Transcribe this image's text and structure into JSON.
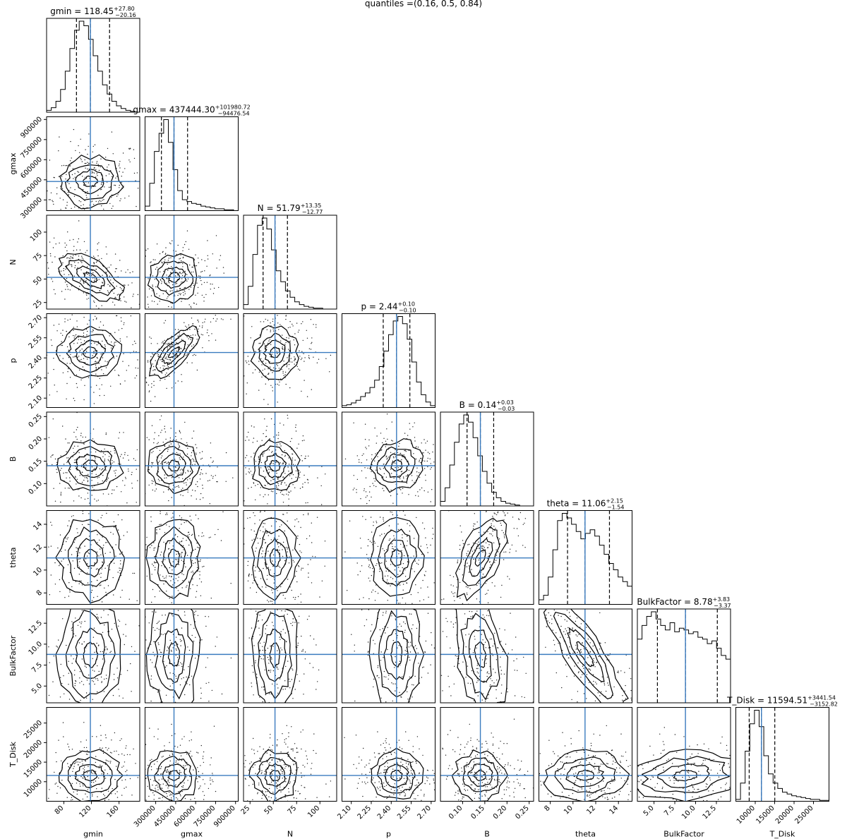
{
  "chart_data": {
    "type": "corner",
    "quantiles_label": "quantiles =(0.16, 0.5, 0.84)",
    "quantiles": [
      0.16,
      0.5,
      0.84
    ],
    "truth_color": "#3a7bbf",
    "parameters": [
      {
        "name": "gmin",
        "median": 118.45,
        "median_text": "118.45",
        "upper": "+27.80",
        "lower": "−20.16",
        "range": [
          55,
          190
        ],
        "ticks": [
          80,
          120,
          160
        ],
        "tick_labels": [
          "80",
          "120",
          "160"
        ],
        "quantile_values": [
          98.29,
          118.45,
          146.25
        ]
      },
      {
        "name": "gmax",
        "median": 437444.3,
        "median_text": "437444.30",
        "upper": "+101980.72",
        "lower": "−94476.54",
        "range": [
          220000,
          920000
        ],
        "ticks": [
          300000,
          450000,
          600000,
          750000,
          900000
        ],
        "tick_labels": [
          "300000",
          "450000",
          "600000",
          "750000",
          "900000"
        ],
        "quantile_values": [
          342967.76,
          437444.3,
          539425.02
        ]
      },
      {
        "name": "N",
        "median": 51.79,
        "median_text": "51.79",
        "upper": "+13.35",
        "lower": "−12.77",
        "range": [
          18,
          118
        ],
        "ticks": [
          25,
          50,
          75,
          100
        ],
        "tick_labels": [
          "25",
          "50",
          "75",
          "100"
        ],
        "quantile_values": [
          39.02,
          51.79,
          65.14
        ]
      },
      {
        "name": "p",
        "median": 2.44,
        "median_text": "2.44",
        "upper": "+0.10",
        "lower": "−0.10",
        "range": [
          2.03,
          2.73
        ],
        "ticks": [
          2.1,
          2.25,
          2.4,
          2.55,
          2.7
        ],
        "tick_labels": [
          "2.10",
          "2.25",
          "2.40",
          "2.55",
          "2.70"
        ],
        "quantile_values": [
          2.34,
          2.44,
          2.54
        ]
      },
      {
        "name": "B",
        "median": 0.14,
        "median_text": "0.14",
        "upper": "+0.03",
        "lower": "−0.03",
        "range": [
          0.05,
          0.26
        ],
        "ticks": [
          0.1,
          0.15,
          0.2,
          0.25
        ],
        "tick_labels": [
          "0.10",
          "0.15",
          "0.20",
          "0.25"
        ],
        "quantile_values": [
          0.11,
          0.14,
          0.17
        ]
      },
      {
        "name": "theta",
        "median": 11.06,
        "median_text": "11.06",
        "upper": "+2.15",
        "lower": "−1.54",
        "range": [
          7.0,
          15.2
        ],
        "ticks": [
          8,
          10,
          12,
          14
        ],
        "tick_labels": [
          "8",
          "10",
          "12",
          "14"
        ],
        "quantile_values": [
          9.52,
          11.06,
          13.21
        ]
      },
      {
        "name": "BulkFactor",
        "median": 8.78,
        "median_text": "8.78",
        "upper": "+3.83",
        "lower": "−3.37",
        "range": [
          3.0,
          14.2
        ],
        "ticks": [
          5.0,
          7.5,
          10.0,
          12.5
        ],
        "tick_labels": [
          "5.0",
          "7.5",
          "10.0",
          "12.5"
        ],
        "quantile_values": [
          5.41,
          8.78,
          12.61
        ]
      },
      {
        "name": "T_Disk",
        "median": 11594.51,
        "median_text": "11594.51",
        "upper": "+3441.54",
        "lower": "−3152.82",
        "range": [
          5000,
          29000
        ],
        "ticks": [
          10000,
          15000,
          20000,
          25000
        ],
        "tick_labels": [
          "10000",
          "15000",
          "20000",
          "25000"
        ],
        "quantile_values": [
          8441.69,
          11594.51,
          15036.05
        ]
      }
    ],
    "y_tick_sets": {
      "gmax": {
        "ticks": [
          300000,
          450000,
          600000,
          750000,
          900000
        ],
        "labels": [
          "300000",
          "450000",
          "600000",
          "750000",
          "900000"
        ]
      },
      "N": {
        "ticks": [
          25,
          50,
          75,
          100
        ],
        "labels": [
          "25",
          "50",
          "75",
          "100"
        ]
      },
      "p": {
        "ticks": [
          2.1,
          2.25,
          2.4,
          2.55,
          2.7
        ],
        "labels": [
          "2.10",
          "2.25",
          "2.40",
          "2.55",
          "2.70"
        ]
      },
      "B": {
        "ticks": [
          0.1,
          0.15,
          0.2,
          0.25
        ],
        "labels": [
          "0.10",
          "0.15",
          "0.20",
          "0.25"
        ]
      },
      "theta": {
        "ticks": [
          8,
          10,
          12,
          14
        ],
        "labels": [
          "8",
          "10",
          "12",
          "14"
        ]
      },
      "BulkFactor": {
        "ticks": [
          5.0,
          7.5,
          10.0,
          12.5
        ],
        "labels": [
          "5.0",
          "7.5",
          "10.0",
          "12.5"
        ]
      },
      "T_Disk": {
        "ticks": [
          10000,
          15000,
          20000,
          25000
        ],
        "labels": [
          "10000",
          "15000",
          "20000",
          "25000"
        ]
      }
    },
    "histograms": {
      "gmin": [
        0.02,
        0.05,
        0.12,
        0.25,
        0.45,
        0.7,
        0.9,
        1.0,
        0.95,
        0.8,
        0.62,
        0.45,
        0.3,
        0.2,
        0.12,
        0.07,
        0.04,
        0.02,
        0.01,
        0.0
      ],
      "gmax": [
        0.05,
        0.3,
        0.65,
        0.85,
        1.0,
        0.75,
        0.45,
        0.22,
        0.12,
        0.1,
        0.08,
        0.07,
        0.05,
        0.04,
        0.03,
        0.02,
        0.02,
        0.01,
        0.01,
        0.0
      ],
      "N": [
        0.05,
        0.25,
        0.6,
        0.92,
        1.0,
        0.88,
        0.65,
        0.42,
        0.3,
        0.2,
        0.13,
        0.08,
        0.05,
        0.03,
        0.02,
        0.01,
        0.01,
        0.0,
        0.0,
        0.0
      ],
      "p": [
        0.02,
        0.03,
        0.05,
        0.08,
        0.12,
        0.16,
        0.22,
        0.3,
        0.45,
        0.62,
        0.8,
        0.95,
        1.0,
        0.92,
        0.75,
        0.5,
        0.28,
        0.14,
        0.06,
        0.02
      ],
      "B": [
        0.05,
        0.2,
        0.45,
        0.7,
        0.9,
        1.0,
        0.92,
        0.75,
        0.55,
        0.38,
        0.25,
        0.15,
        0.09,
        0.05,
        0.03,
        0.02,
        0.01,
        0.0,
        0.0,
        0.0
      ],
      "theta": [
        0.05,
        0.1,
        0.3,
        0.6,
        0.92,
        1.0,
        0.95,
        0.88,
        0.8,
        0.72,
        0.78,
        0.82,
        0.75,
        0.65,
        0.55,
        0.45,
        0.38,
        0.3,
        0.25,
        0.2
      ],
      "BulkFactor": [
        0.7,
        0.85,
        0.95,
        1.0,
        0.92,
        0.85,
        0.8,
        0.88,
        0.78,
        0.82,
        0.8,
        0.76,
        0.78,
        0.72,
        0.7,
        0.65,
        0.68,
        0.6,
        0.52,
        0.48
      ],
      "T_Disk": [
        0.02,
        0.2,
        0.55,
        0.85,
        1.0,
        0.82,
        0.5,
        0.3,
        0.2,
        0.14,
        0.1,
        0.08,
        0.06,
        0.05,
        0.04,
        0.03,
        0.02,
        0.02,
        0.01,
        0.01
      ]
    },
    "correlations": {
      "gmax|gmin": 0.05,
      "N|gmin": -0.6,
      "N|gmax": 0.05,
      "p|gmin": 0.05,
      "p|gmax": 0.75,
      "p|N": 0.05,
      "B|gmin": 0.0,
      "B|gmax": -0.05,
      "B|N": -0.05,
      "B|p": 0.1,
      "theta|gmin": 0.0,
      "theta|gmax": 0.0,
      "theta|N": 0.0,
      "theta|p": 0.05,
      "theta|B": 0.6,
      "BulkFactor|gmin": 0.0,
      "BulkFactor|gmax": 0.0,
      "BulkFactor|N": 0.0,
      "BulkFactor|p": 0.0,
      "BulkFactor|B": -0.3,
      "BulkFactor|theta": -0.85,
      "T_Disk|gmin": 0.0,
      "T_Disk|gmax": 0.0,
      "T_Disk|N": 0.0,
      "T_Disk|p": 0.0,
      "T_Disk|B": 0.0,
      "T_Disk|theta": 0.05,
      "T_Disk|BulkFactor": 0.2
    }
  }
}
